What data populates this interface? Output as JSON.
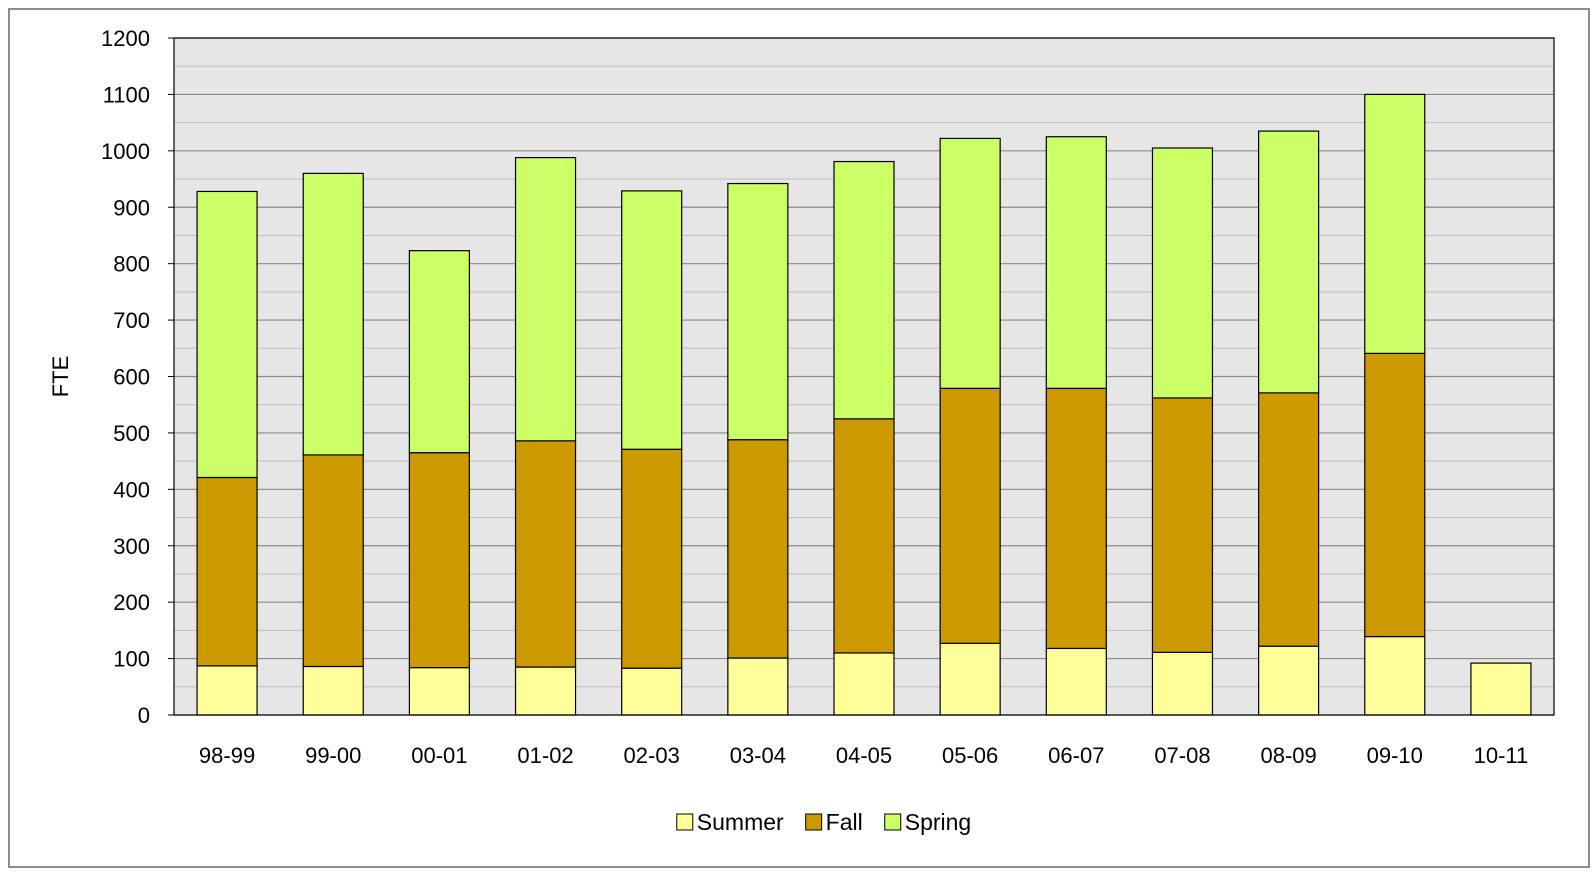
{
  "chart_data": {
    "type": "bar",
    "stacked": true,
    "categories": [
      "98-99",
      "99-00",
      "00-01",
      "01-02",
      "02-03",
      "03-04",
      "04-05",
      "05-06",
      "06-07",
      "07-08",
      "08-09",
      "09-10",
      "10-11"
    ],
    "series": [
      {
        "name": "Summer",
        "color": "#ffff99",
        "values": [
          87,
          86,
          84,
          85,
          83,
          101,
          110,
          127,
          118,
          111,
          122,
          139,
          92
        ]
      },
      {
        "name": "Fall",
        "color": "#cc9900",
        "values": [
          334,
          375,
          381,
          401,
          388,
          387,
          415,
          452,
          461,
          451,
          449,
          502,
          0
        ]
      },
      {
        "name": "Spring",
        "color": "#ccff66",
        "values": [
          507,
          499,
          358,
          502,
          458,
          454,
          456,
          443,
          446,
          443,
          464,
          459,
          0
        ]
      }
    ],
    "title": "",
    "xlabel": "",
    "ylabel": "FTE",
    "ylim": [
      0,
      1200
    ],
    "yticks": [
      0,
      100,
      200,
      300,
      400,
      500,
      600,
      700,
      800,
      900,
      1000,
      1100,
      1200
    ],
    "grid": true,
    "legend_position": "bottom"
  }
}
